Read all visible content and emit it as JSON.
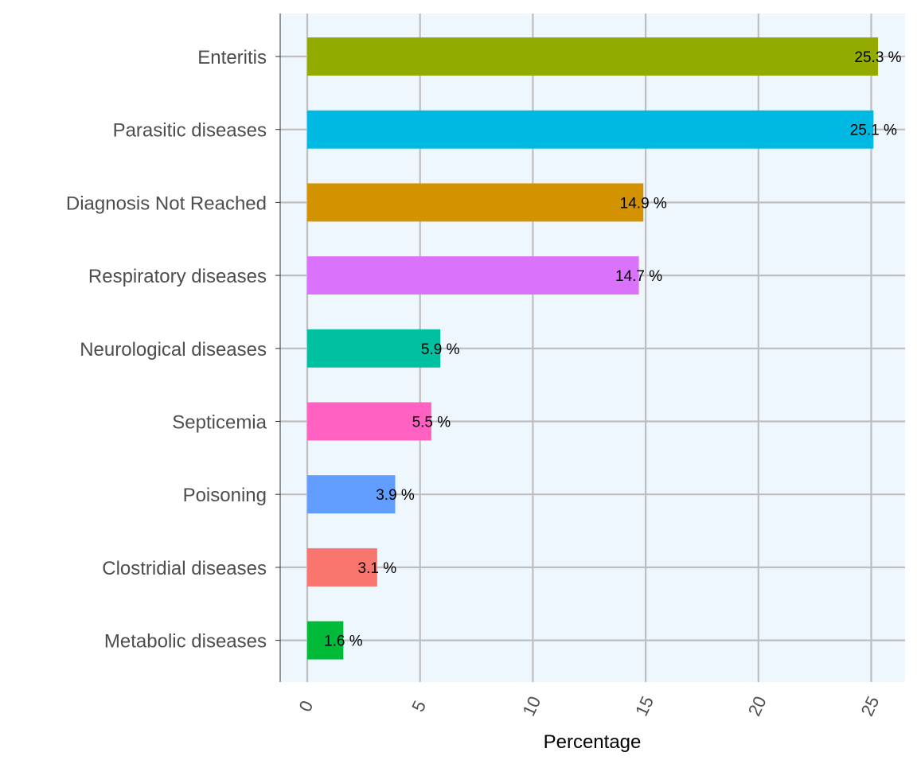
{
  "chart_data": {
    "type": "bar",
    "orientation": "horizontal",
    "title": "",
    "xlabel": "Percentage",
    "ylabel": "",
    "xlim": [
      -1.2,
      26.5
    ],
    "x_ticks": [
      "0",
      "5",
      "10",
      "15",
      "20",
      "25"
    ],
    "x_tick_values": [
      0,
      5,
      10,
      15,
      20,
      25
    ],
    "grid": true,
    "categories": [
      "Enteritis",
      "Parasitic diseases",
      "Diagnosis Not Reached",
      "Respiratory diseases",
      "Neurological diseases",
      "Septicemia",
      "Poisoning",
      "Clostridial diseases",
      "Metabolic diseases"
    ],
    "values": [
      25.3,
      25.1,
      14.9,
      14.7,
      5.9,
      5.5,
      3.9,
      3.1,
      1.6
    ],
    "data_labels": [
      "25.3 %",
      "25.1 %",
      "14.9 %",
      "14.7 %",
      "5.9 %",
      "5.5 %",
      "3.9 %",
      "3.1 %",
      "1.6 %"
    ],
    "colors": [
      "#93AA00",
      "#00B9E3",
      "#D39200",
      "#DB72FB",
      "#00C19F",
      "#FF61C3",
      "#619CFF",
      "#F8766D",
      "#00BA38"
    ],
    "panel_background": "#eef6fe",
    "grid_color": "#bebebe"
  }
}
